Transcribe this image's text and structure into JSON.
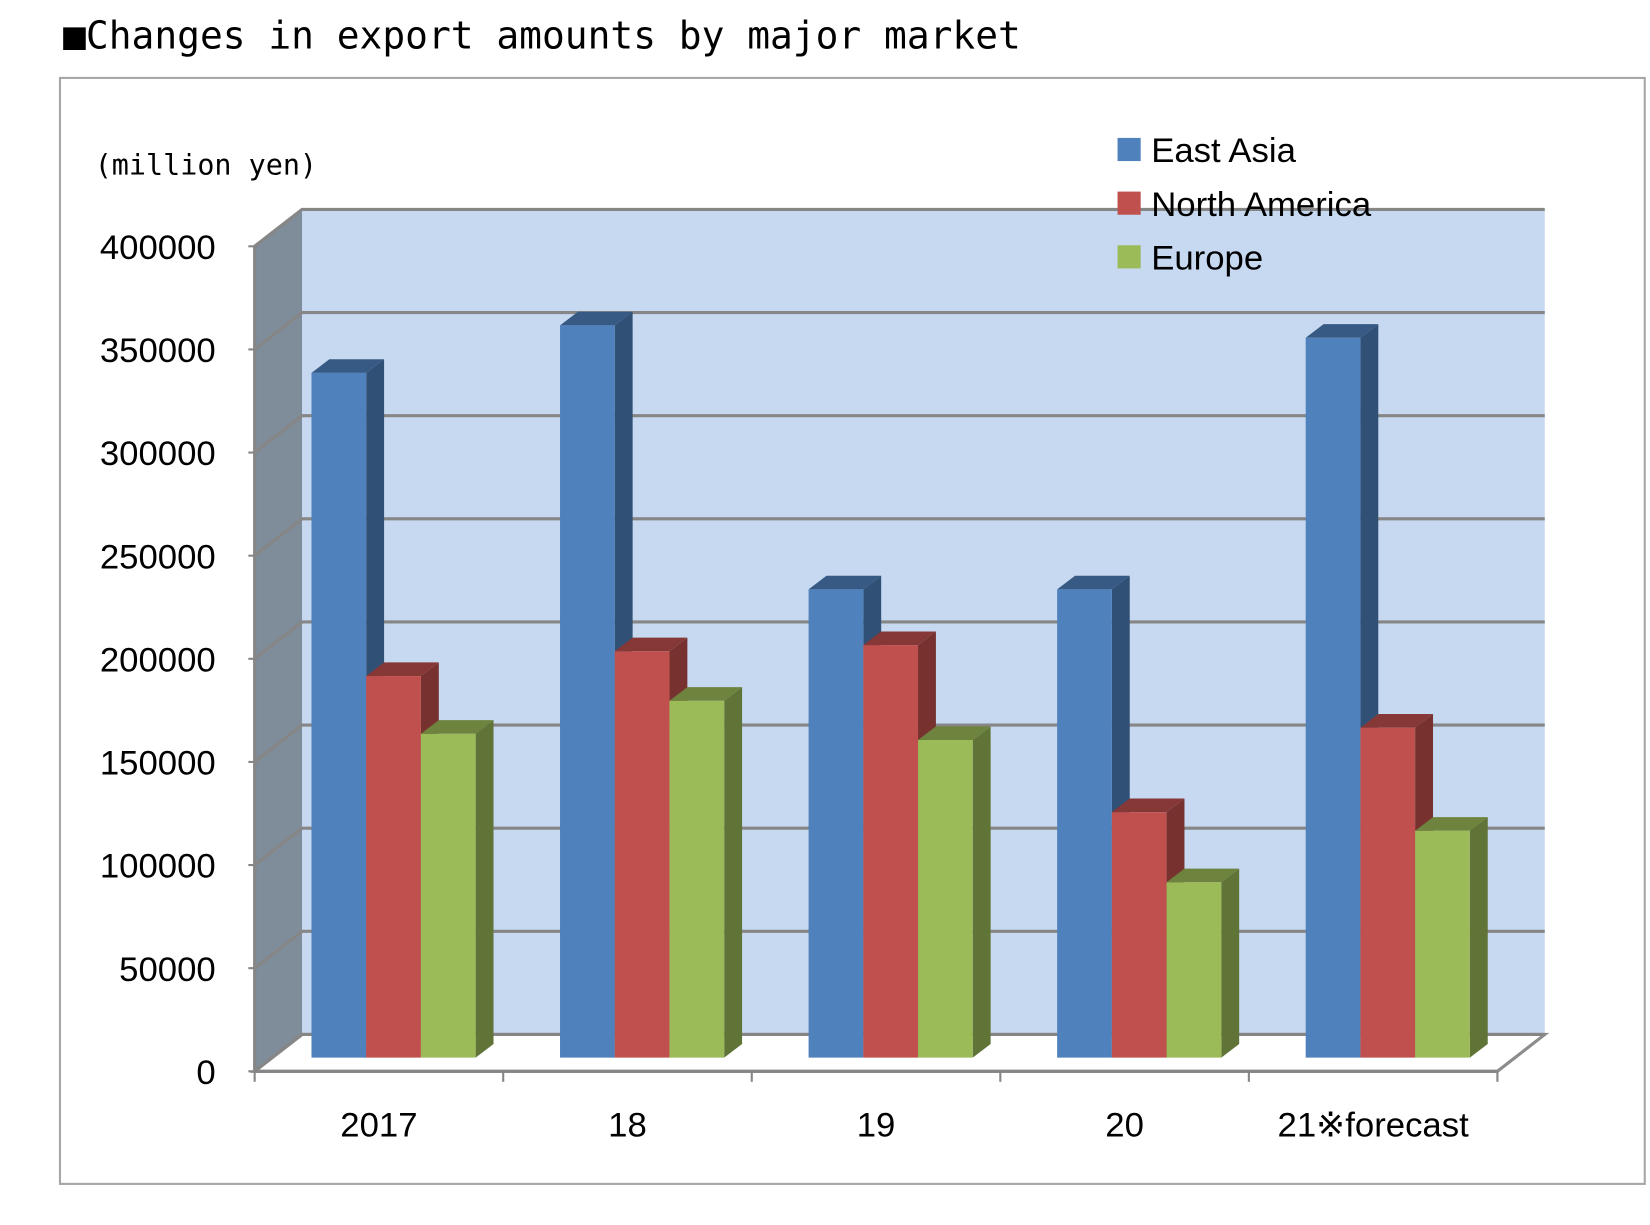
{
  "chart_data": {
    "type": "bar",
    "style": "3d-clustered-column",
    "title": "■Changes in export amounts by major market",
    "unit_label": "(million yen)",
    "categories": [
      "2017",
      "18",
      "19",
      "20",
      "21※forecast"
    ],
    "series": [
      {
        "name": "East Asia",
        "color": "#4F81BD",
        "values": [
          332000,
          355000,
          227000,
          227000,
          349000
        ]
      },
      {
        "name": "North America",
        "color": "#C0504D",
        "values": [
          185000,
          197000,
          200000,
          119000,
          160000
        ]
      },
      {
        "name": "Europe",
        "color": "#9BBB59",
        "values": [
          157000,
          173000,
          154000,
          85000,
          110000
        ]
      }
    ],
    "ylim": [
      0,
      400000
    ],
    "yticks": [
      "0",
      "50000",
      "100000",
      "150000",
      "200000",
      "250000",
      "300000",
      "350000",
      "400000"
    ],
    "grid": true,
    "legend_position": "top-right",
    "wall_color": "#C6D9F1"
  }
}
